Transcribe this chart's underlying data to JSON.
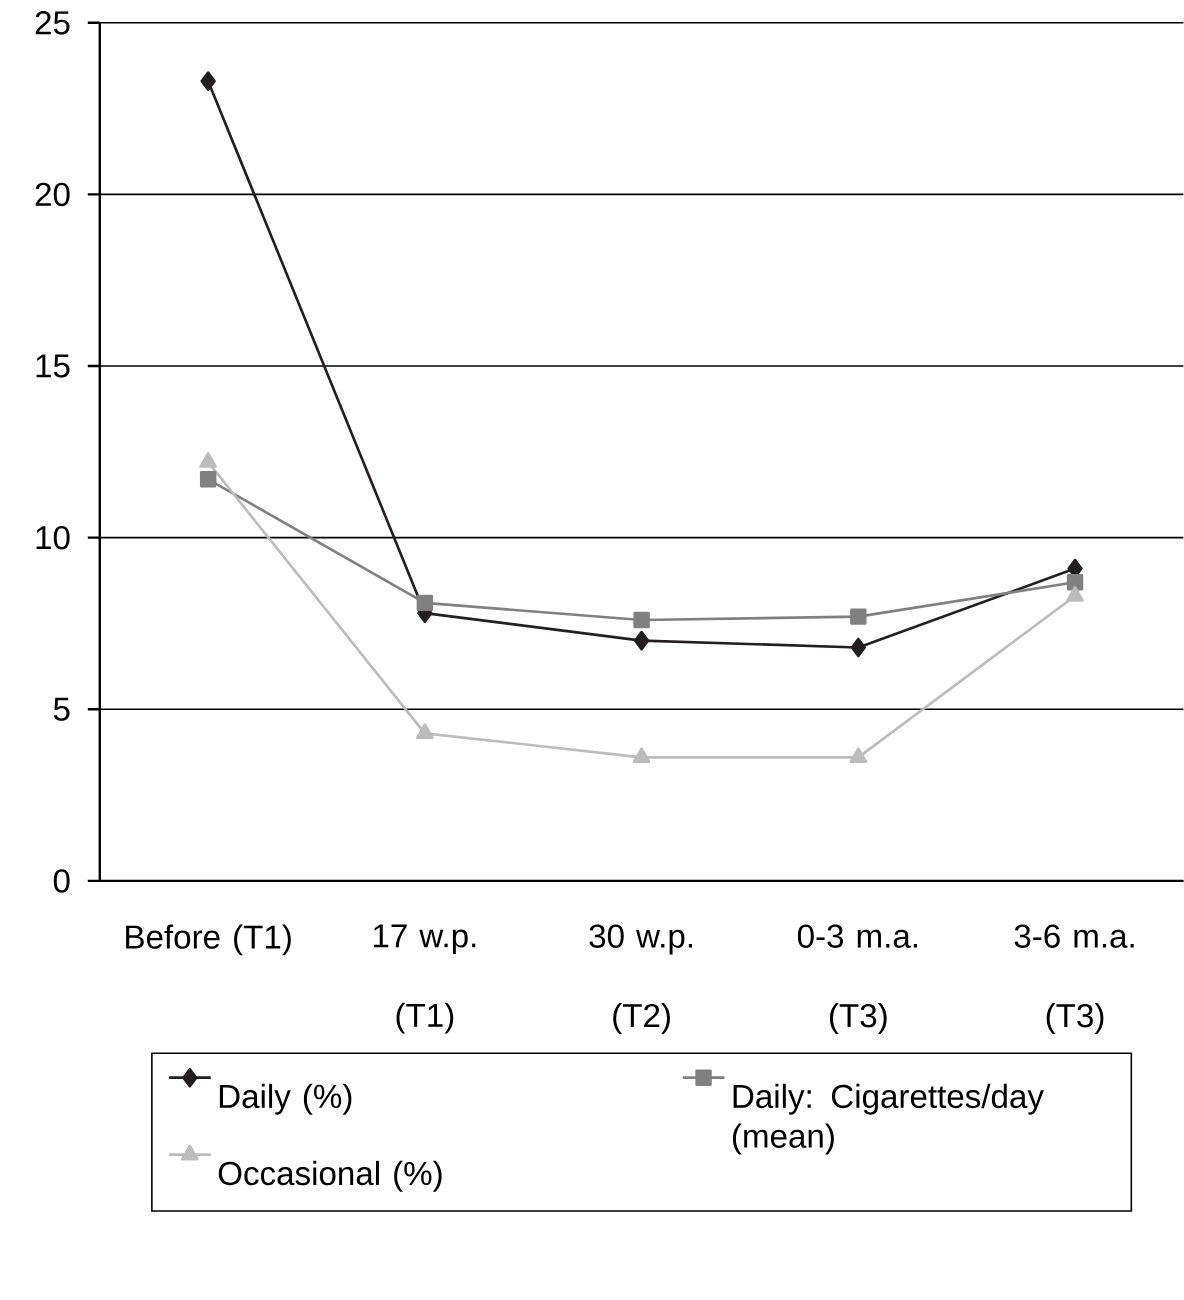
{
  "chart_data": {
    "type": "line",
    "categories": [
      "Before (T1)",
      "17 w.p. (T1)",
      "30 w.p. (T2)",
      "0-3 m.a. (T3)",
      "3-6 m.a. (T3)"
    ],
    "series": [
      {
        "name": "Daily (%)",
        "color": "#231f20",
        "marker": "diamond",
        "values": [
          23.3,
          7.8,
          7.0,
          6.8,
          9.1
        ]
      },
      {
        "name": "Daily: Cigarettes/day (mean)",
        "color": "#808080",
        "marker": "square",
        "values": [
          11.7,
          8.1,
          7.6,
          7.7,
          8.7
        ]
      },
      {
        "name": "Occasional (%)",
        "color": "#bcbcbc",
        "marker": "triangle",
        "values": [
          12.2,
          4.3,
          3.6,
          3.6,
          8.3
        ]
      }
    ],
    "ylim": [
      0,
      25
    ],
    "yticks": [
      0,
      5,
      10,
      15,
      20,
      25
    ],
    "grid": "y",
    "legend": "bottom",
    "line_style": "solid"
  }
}
